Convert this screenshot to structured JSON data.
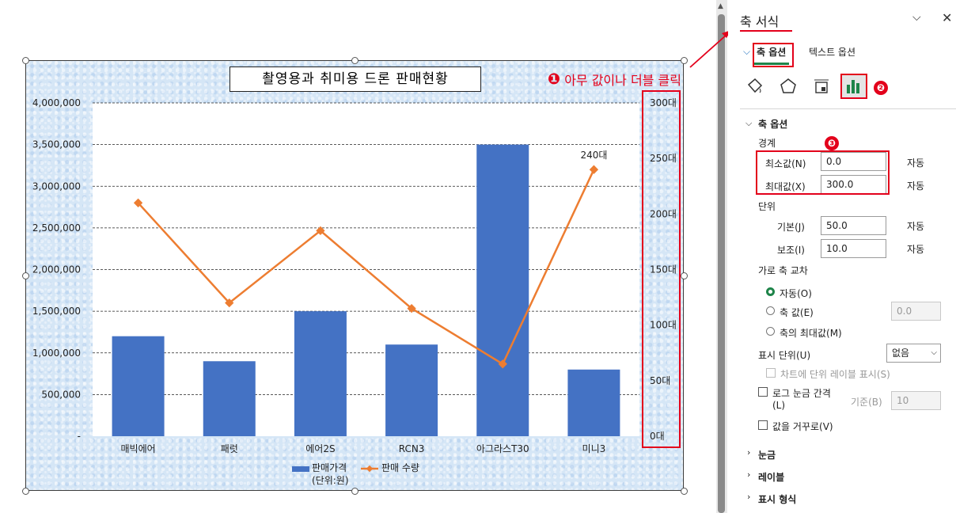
{
  "chart_data": {
    "type": "bar",
    "title": "촬영용과 취미용 드론 판매현황",
    "categories": [
      "매빅에어",
      "패럿",
      "에어2S",
      "RCN3",
      "아그라스T30",
      "미니3"
    ],
    "series": [
      {
        "name": "판매가격\n(단위:원)",
        "type": "bar",
        "axis": "left",
        "color": "#4472c4",
        "values": [
          1200000,
          900000,
          1500000,
          1100000,
          3500000,
          800000
        ]
      },
      {
        "name": "판매 수량",
        "type": "line",
        "axis": "right",
        "color": "#ed7d31",
        "values": [
          210,
          120,
          185,
          115,
          65,
          240
        ]
      }
    ],
    "y_left": {
      "min": 0,
      "max": 4000000,
      "ticks": [
        "-",
        "500,000",
        "1,000,000",
        "1,500,000",
        "2,000,000",
        "2,500,000",
        "3,000,000",
        "3,500,000",
        "4,000,000"
      ]
    },
    "y_right": {
      "min": 0,
      "max": 300,
      "ticks": [
        "0대",
        "50대",
        "100대",
        "150대",
        "200대",
        "250대",
        "300대"
      ]
    },
    "data_labels": [
      {
        "series": 1,
        "index": 5,
        "text": "240대"
      }
    ],
    "legend": {
      "position": "bottom",
      "bar_label": "판매가격",
      "bar_sublabel": "(단위:원)",
      "line_label": "판매 수량"
    },
    "grid": true
  },
  "annotation": {
    "step1": "❶",
    "step1_text": "아무 값이나 더블 클릭",
    "step2": "❷",
    "step3": "❸"
  },
  "panel": {
    "title": "축 서식",
    "tab_axis_options": "축 옵션",
    "tab_text_options": "텍스트 옵션",
    "section_axis_options": "축 옵션",
    "bounds_label": "경계",
    "min_label": "최소값(N)",
    "min_value": "0.0",
    "min_auto": "자동",
    "max_label": "최대값(X)",
    "max_value": "300.0",
    "max_auto": "자동",
    "units_label": "단위",
    "major_label": "기본(J)",
    "major_value": "50.0",
    "major_auto": "자동",
    "minor_label": "보조(I)",
    "minor_value": "10.0",
    "minor_auto": "자동",
    "cross_label": "가로 축 교차",
    "cross_auto": "자동(O)",
    "cross_value_label": "축 값(E)",
    "cross_value": "0.0",
    "cross_max": "축의 최대값(M)",
    "display_units_label": "표시 단위(U)",
    "display_units_value": "없음",
    "show_units_label": "차트에 단위 레이블 표시(S)",
    "log_label": "로그 눈금 간격",
    "log_label2": "(L)",
    "log_base_label": "기준(B)",
    "log_base_value": "10",
    "reverse_label": "값을 거꾸로(V)",
    "sec_ticks": "눈금",
    "sec_labels": "레이블",
    "sec_format": "표시 형식"
  },
  "colors": {
    "accent_red": "#e3001b",
    "bar": "#4472c4",
    "line": "#ed7d31",
    "active_tab": "#1e8449"
  }
}
